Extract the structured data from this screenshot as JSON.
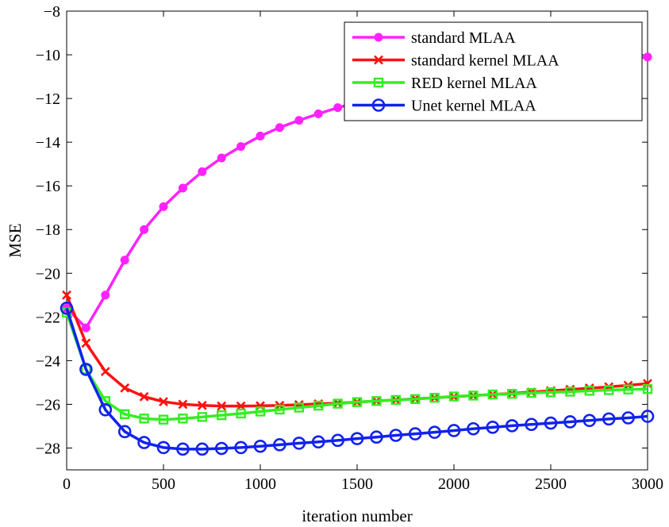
{
  "chart_data": {
    "type": "line",
    "xlabel": "iteration number",
    "ylabel": "MSE",
    "xlim": [
      0,
      3000
    ],
    "ylim": [
      -29,
      -8
    ],
    "xticks": [
      0,
      500,
      1000,
      1500,
      2000,
      2500,
      3000
    ],
    "yticks": [
      -8,
      -10,
      -12,
      -14,
      -16,
      -18,
      -20,
      -22,
      -24,
      -26,
      -28
    ],
    "grid": false,
    "legend_position": "top-right",
    "series": [
      {
        "name": "standard MLAA",
        "color": "#ff22ff",
        "marker": "circle-filled",
        "x": [
          0,
          100,
          200,
          300,
          400,
          500,
          600,
          700,
          800,
          900,
          1000,
          1100,
          1200,
          1300,
          1400,
          1500,
          1600,
          1700,
          1800,
          1900,
          2000,
          2100,
          2200,
          2300,
          2400,
          2500,
          2600,
          2700,
          2800,
          2900,
          3000
        ],
        "values": [
          -21.6,
          -22.5,
          -21.0,
          -19.4,
          -18.0,
          -16.95,
          -16.1,
          -15.35,
          -14.72,
          -14.2,
          -13.72,
          -13.33,
          -13.0,
          -12.7,
          -12.42,
          -12.18,
          -11.95,
          -11.74,
          -11.55,
          -11.38,
          -11.22,
          -11.07,
          -10.93,
          -10.8,
          -10.68,
          -10.56,
          -10.46,
          -10.36,
          -10.26,
          -10.18,
          -10.1
        ]
      },
      {
        "name": "standard kernel MLAA",
        "color": "#ff1111",
        "marker": "x",
        "x": [
          0,
          100,
          200,
          300,
          400,
          500,
          600,
          700,
          800,
          900,
          1000,
          1100,
          1200,
          1300,
          1400,
          1500,
          1600,
          1700,
          1800,
          1900,
          2000,
          2100,
          2200,
          2300,
          2400,
          2500,
          2600,
          2700,
          2800,
          2900,
          3000
        ],
        "values": [
          -21.0,
          -23.2,
          -24.5,
          -25.25,
          -25.65,
          -25.88,
          -26.0,
          -26.05,
          -26.08,
          -26.08,
          -26.07,
          -26.05,
          -26.02,
          -25.98,
          -25.95,
          -25.9,
          -25.85,
          -25.8,
          -25.75,
          -25.7,
          -25.65,
          -25.6,
          -25.55,
          -25.5,
          -25.44,
          -25.38,
          -25.32,
          -25.26,
          -25.2,
          -25.13,
          -25.05
        ]
      },
      {
        "name": "RED kernel MLAA",
        "color": "#33ee22",
        "marker": "square",
        "x": [
          0,
          100,
          200,
          300,
          400,
          500,
          600,
          700,
          800,
          900,
          1000,
          1100,
          1200,
          1300,
          1400,
          1500,
          1600,
          1700,
          1800,
          1900,
          2000,
          2100,
          2200,
          2300,
          2400,
          2500,
          2600,
          2700,
          2800,
          2900,
          3000
        ],
        "values": [
          -21.8,
          -24.4,
          -25.85,
          -26.45,
          -26.65,
          -26.7,
          -26.65,
          -26.58,
          -26.5,
          -26.42,
          -26.33,
          -26.24,
          -26.15,
          -26.06,
          -25.97,
          -25.9,
          -25.85,
          -25.8,
          -25.76,
          -25.7,
          -25.64,
          -25.6,
          -25.55,
          -25.52,
          -25.48,
          -25.45,
          -25.42,
          -25.38,
          -25.35,
          -25.32,
          -25.3
        ]
      },
      {
        "name": "Unet kernel MLAA",
        "color": "#1122ee",
        "marker": "circle-open",
        "x": [
          0,
          100,
          200,
          300,
          400,
          500,
          600,
          700,
          800,
          900,
          1000,
          1100,
          1200,
          1300,
          1400,
          1500,
          1600,
          1700,
          1800,
          1900,
          2000,
          2100,
          2200,
          2300,
          2400,
          2500,
          2600,
          2700,
          2800,
          2900,
          3000
        ],
        "values": [
          -21.6,
          -24.4,
          -26.25,
          -27.25,
          -27.75,
          -27.98,
          -28.05,
          -28.05,
          -28.02,
          -27.98,
          -27.92,
          -27.85,
          -27.78,
          -27.72,
          -27.65,
          -27.57,
          -27.5,
          -27.42,
          -27.35,
          -27.28,
          -27.2,
          -27.12,
          -27.05,
          -26.98,
          -26.92,
          -26.86,
          -26.8,
          -26.74,
          -26.67,
          -26.62,
          -26.55
        ]
      }
    ]
  }
}
